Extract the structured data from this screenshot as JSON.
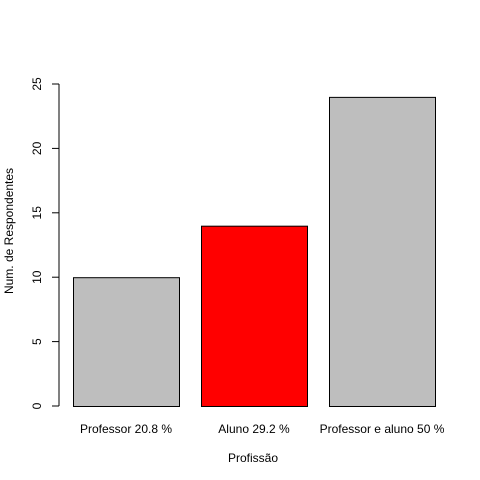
{
  "chart_data": {
    "type": "bar",
    "title": "",
    "categories": [
      "Professor 20.8 %",
      "Aluno 29.2 %",
      "Professor e aluno 50 %"
    ],
    "values": [
      10,
      14,
      24
    ],
    "bar_colors": [
      "#bebebe",
      "#ff0000",
      "#bebebe"
    ],
    "bar_border_color": "#000000",
    "xlabel": "Profissão",
    "ylabel": "Num. de Respondentes",
    "ylim": [
      0,
      25
    ],
    "yticks": [
      0,
      5,
      10,
      15,
      20,
      25
    ],
    "grid": false,
    "legend": "none"
  }
}
